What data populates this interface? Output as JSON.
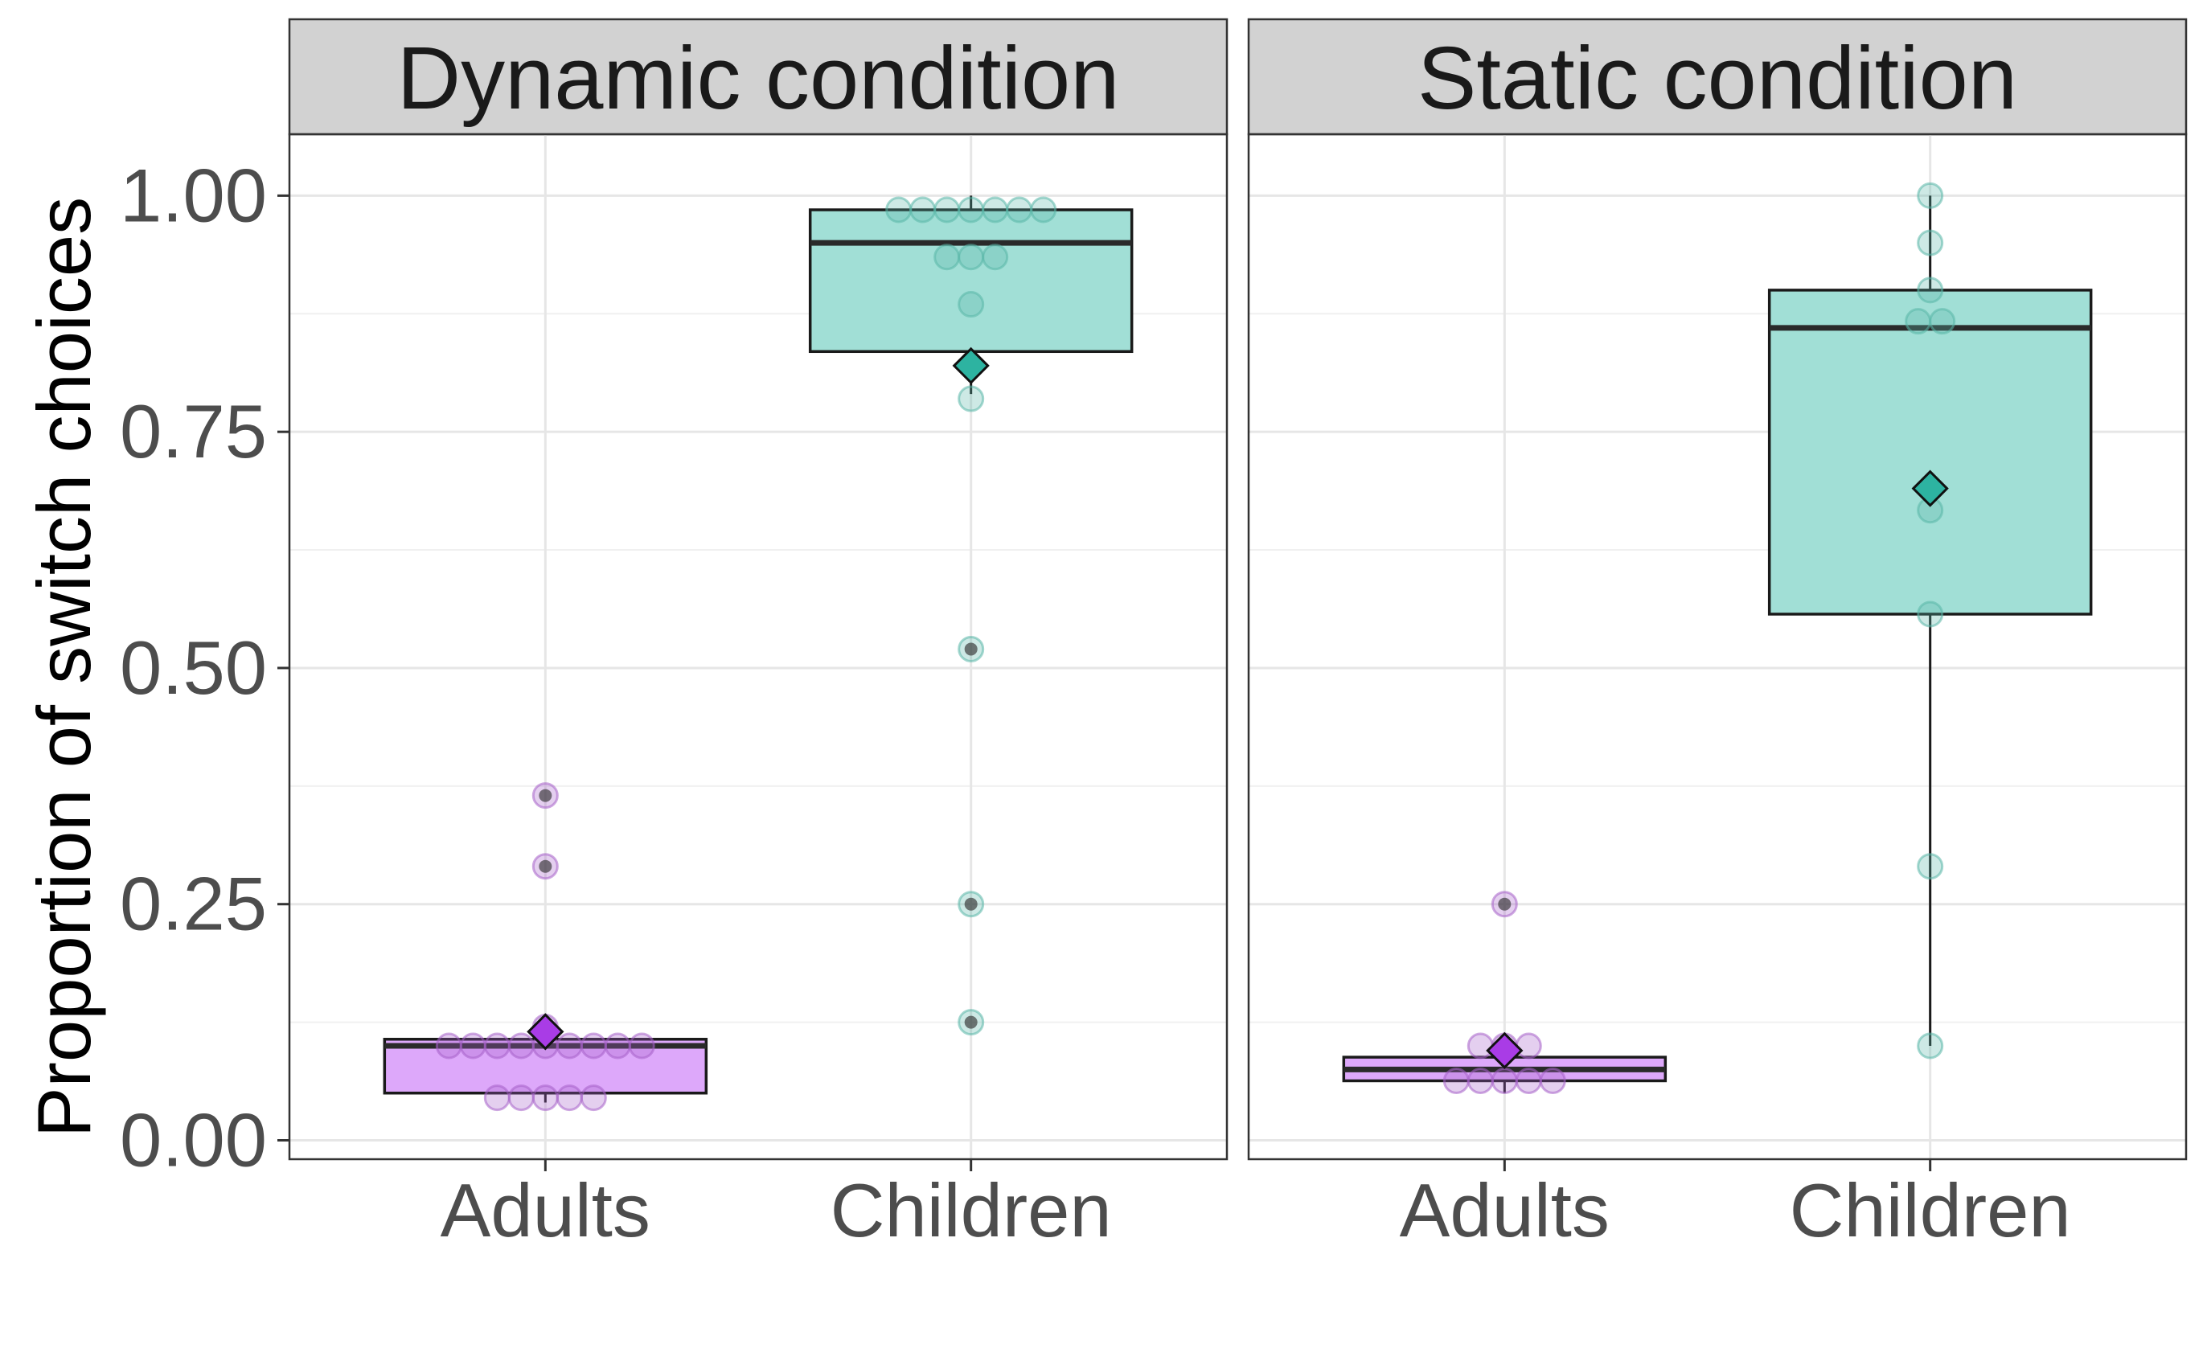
{
  "chart_data": {
    "type": "boxplot",
    "ylabel": "Proportion of switch choices",
    "xlabel": "",
    "ylim": [
      -0.02,
      1.065
    ],
    "y_ticks": [
      "0.00",
      "0.25",
      "0.50",
      "0.75",
      "1.00"
    ],
    "y_tick_values": [
      0,
      0.25,
      0.5,
      0.75,
      1.0
    ],
    "categories": [
      "Adults",
      "Children"
    ],
    "colors": {
      "Adults": {
        "fill": "#dda8fa",
        "point": "#a560c9",
        "mean": "#a93ce6"
      },
      "Children": {
        "fill": "#a1dfd6",
        "point": "#59b6a8",
        "mean": "#2db3a1"
      },
      "strip_bg": "#d2d2d2",
      "grid": "#e6e6e6",
      "median": "#2a2a2a"
    },
    "panels": [
      {
        "title": "Dynamic condition",
        "groups": [
          {
            "category": "Adults",
            "box": {
              "q1": 0.05,
              "median": 0.1,
              "q3": 0.107,
              "whisker_low": 0.04,
              "whisker_high": 0.13
            },
            "mean": 0.115,
            "points": [
              0.045,
              0.045,
              0.045,
              0.045,
              0.045,
              0.1,
              0.1,
              0.1,
              0.1,
              0.1,
              0.1,
              0.1,
              0.1,
              0.1,
              0.12
            ],
            "outliers": [
              0.29,
              0.365
            ]
          },
          {
            "category": "Children",
            "box": {
              "q1": 0.835,
              "median": 0.95,
              "q3": 0.985,
              "whisker_low": 0.79,
              "whisker_high": 1.0
            },
            "mean": 0.82,
            "points": [
              0.985,
              0.985,
              0.985,
              0.985,
              0.985,
              0.985,
              0.985,
              0.935,
              0.935,
              0.935,
              0.885,
              0.785
            ],
            "outliers": [
              0.125,
              0.25,
              0.52
            ]
          }
        ]
      },
      {
        "title": "Static condition",
        "groups": [
          {
            "category": "Adults",
            "box": {
              "q1": 0.063,
              "median": 0.075,
              "q3": 0.088,
              "whisker_low": 0.05,
              "whisker_high": 0.1
            },
            "mean": 0.095,
            "points": [
              0.063,
              0.063,
              0.063,
              0.063,
              0.063,
              0.1,
              0.1,
              0.1
            ],
            "outliers": [
              0.25
            ]
          },
          {
            "category": "Children",
            "box": {
              "q1": 0.557,
              "median": 0.86,
              "q3": 0.9,
              "whisker_low": 0.1,
              "whisker_high": 1.0
            },
            "mean": 0.69,
            "points": [
              1.0,
              0.95,
              0.9,
              0.867,
              0.867,
              0.667,
              0.557,
              0.29,
              0.1
            ],
            "outliers": []
          }
        ]
      }
    ]
  }
}
